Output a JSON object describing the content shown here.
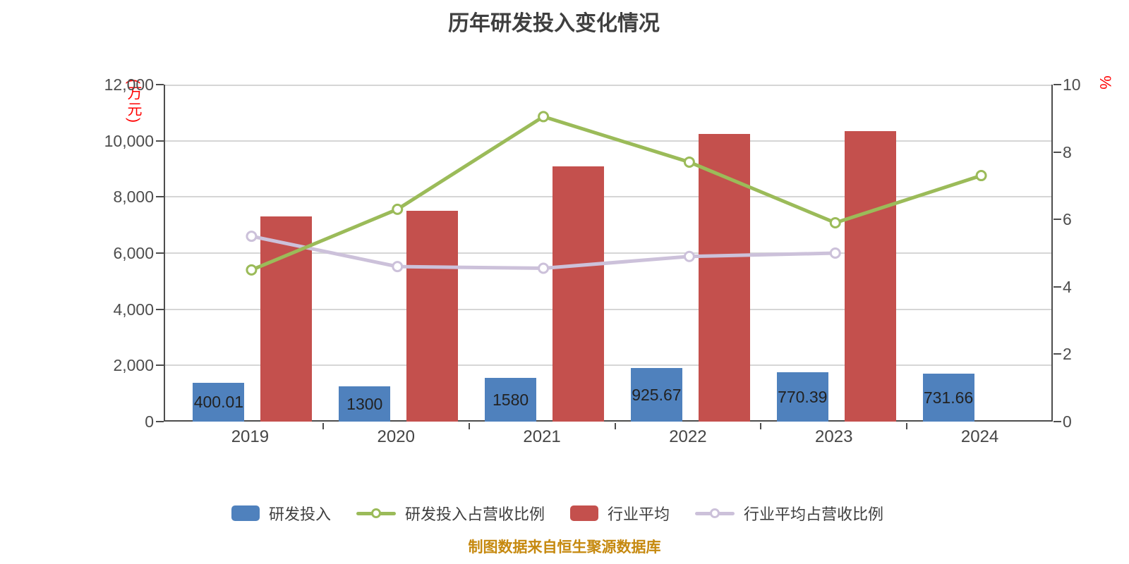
{
  "chart_data": {
    "type": "combo",
    "title": "历年研发投入变化情况",
    "categories": [
      "2019",
      "2020",
      "2021",
      "2022",
      "2023",
      "2024"
    ],
    "left_axis": {
      "label": "(万元)",
      "label_color": "#ff0000",
      "min": 0,
      "max": 12000,
      "step": 2000,
      "ticks": [
        "0",
        "2,000",
        "4,000",
        "6,000",
        "8,000",
        "10,000",
        "12,000"
      ]
    },
    "right_axis": {
      "label": "%",
      "label_color": "#ff0000",
      "min": 0,
      "max": 10,
      "step": 2,
      "ticks": [
        "0",
        "2",
        "4",
        "6",
        "8",
        "10"
      ]
    },
    "grid": true,
    "legend_position": "bottom",
    "series": [
      {
        "name": "研发投入",
        "type": "bar",
        "axis": "left",
        "color": "#4f81bd",
        "values": [
          400.01,
          1300,
          1580,
          925.67,
          770.39,
          731.66
        ],
        "value_labels": [
          "400.01",
          "1300",
          "1580",
          "925.67",
          "770.39",
          "731.66"
        ],
        "bar_display_heights": [
          1390,
          1250,
          1560,
          1915,
          1750,
          1710
        ]
      },
      {
        "name": "行业平均",
        "type": "bar",
        "axis": "left",
        "color": "#c4504d",
        "values": [
          7300,
          7500,
          9100,
          10250,
          10350,
          null
        ]
      },
      {
        "name": "研发投入占营收比例",
        "type": "line",
        "axis": "right",
        "color": "#9bbb59",
        "values": [
          4.5,
          6.3,
          9.05,
          7.7,
          5.9,
          7.3
        ]
      },
      {
        "name": "行业平均占营收比例",
        "type": "line",
        "axis": "right",
        "color": "#ccc1da",
        "values": [
          5.5,
          4.6,
          4.55,
          4.9,
          5.0,
          null
        ]
      }
    ]
  },
  "footer": {
    "text": "制图数据来自恒生聚源数据库",
    "color": "#c6890f"
  }
}
